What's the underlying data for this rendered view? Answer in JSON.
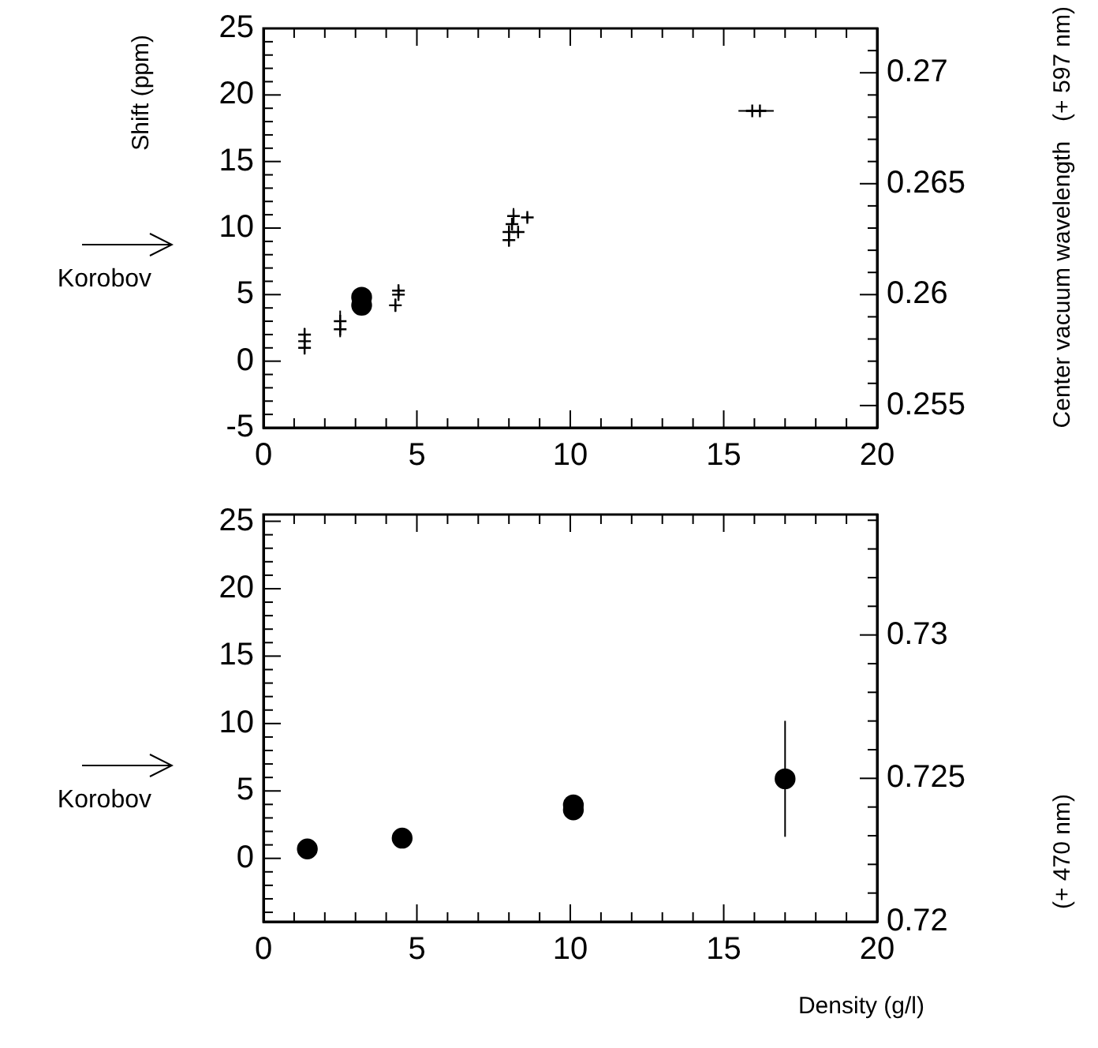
{
  "chart_data": [
    {
      "type": "scatter",
      "ylabel": "Shift (ppm)",
      "y2label": "Center vacuum wavelength   (+ 597 nm)",
      "xlim": [
        0,
        20
      ],
      "xticks": [
        0,
        {
          "value": 1,
          "label": null
        },
        {
          "value": 2,
          "label": null
        },
        {
          "value": 3,
          "label": null
        },
        {
          "value": 4,
          "label": null
        },
        5,
        {
          "value": 6,
          "label": null
        },
        {
          "value": 7,
          "label": null
        },
        {
          "value": 8,
          "label": null
        },
        {
          "value": 9,
          "label": null
        },
        10,
        {
          "value": 11,
          "label": null
        },
        {
          "value": 12,
          "label": null
        },
        {
          "value": 13,
          "label": null
        },
        {
          "value": 14,
          "label": null
        },
        15,
        {
          "value": 16,
          "label": null
        },
        {
          "value": 17,
          "label": null
        },
        {
          "value": 18,
          "label": null
        },
        {
          "value": 19,
          "label": null
        },
        20
      ],
      "ylim": [
        -5,
        25
      ],
      "yticks": [
        -5,
        {
          "value": -4,
          "label": null
        },
        {
          "value": -3,
          "label": null
        },
        {
          "value": -2,
          "label": null
        },
        {
          "value": -1,
          "label": null
        },
        0,
        {
          "value": 1,
          "label": null
        },
        {
          "value": 2,
          "label": null
        },
        {
          "value": 3,
          "label": null
        },
        {
          "value": 4,
          "label": null
        },
        5,
        {
          "value": 6,
          "label": null
        },
        {
          "value": 7,
          "label": null
        },
        {
          "value": 8,
          "label": null
        },
        {
          "value": 9,
          "label": null
        },
        10,
        {
          "value": 11,
          "label": null
        },
        {
          "value": 12,
          "label": null
        },
        {
          "value": 13,
          "label": null
        },
        {
          "value": 14,
          "label": null
        },
        15,
        {
          "value": 16,
          "label": null
        },
        {
          "value": 17,
          "label": null
        },
        {
          "value": 18,
          "label": null
        },
        {
          "value": 19,
          "label": null
        },
        20,
        {
          "value": 21,
          "label": null
        },
        {
          "value": 22,
          "label": null
        },
        {
          "value": 23,
          "label": null
        },
        {
          "value": 24,
          "label": null
        },
        25
      ],
      "y2lim": [
        0.254,
        0.272
      ],
      "y2ticks": [
        0.255,
        {
          "value": 0.256,
          "label": null
        },
        {
          "value": 0.257,
          "label": null
        },
        {
          "value": 0.258,
          "label": null
        },
        {
          "value": 0.259,
          "label": null
        },
        0.26,
        {
          "value": 0.261,
          "label": null
        },
        {
          "value": 0.262,
          "label": null
        },
        {
          "value": 0.263,
          "label": null
        },
        {
          "value": 0.264,
          "label": null
        },
        0.265,
        {
          "value": 0.266,
          "label": null
        },
        {
          "value": 0.267,
          "label": null
        },
        {
          "value": 0.268,
          "label": null
        },
        {
          "value": 0.269,
          "label": null
        },
        0.27,
        {
          "value": 0.271,
          "label": null
        }
      ],
      "series": [
        {
          "color": "#000000",
          "marker": "cross",
          "x": [
            1.34,
            1.34,
            1.34,
            2.5,
            2.5,
            4.3,
            4.4,
            4.4,
            8.0,
            8.0,
            8.3,
            8.1,
            8.15,
            8.6,
            15.93,
            16.18
          ],
          "values": [
            2.0,
            1.5,
            1.0,
            3.0,
            2.4,
            4.2,
            5.3,
            5.0,
            9.7,
            9.1,
            9.7,
            10.3,
            10.9,
            10.8,
            18.8,
            18.8
          ],
          "errors": [
            0.5,
            0.5,
            0.5,
            0.8,
            0.6,
            0.5,
            0.4,
            0.4,
            0.5,
            0.5,
            0.3,
            0.4,
            0.6,
            0.3,
            null,
            null
          ],
          "xerrors": [
            null,
            null,
            null,
            null,
            null,
            null,
            null,
            null,
            null,
            null,
            null,
            null,
            null,
            null,
            0.45,
            0.45
          ]
        },
        {
          "color": "#000000",
          "marker": "circle",
          "x": [
            3.2,
            3.2
          ],
          "values": [
            4.8,
            4.2
          ]
        }
      ],
      "annotations": [
        "Korobov"
      ]
    },
    {
      "type": "scatter",
      "xlabel": "Density (g/l)",
      "y2label": "(+ 470 nm)",
      "xlim": [
        0,
        20
      ],
      "xticks": [
        0,
        {
          "value": 1,
          "label": null
        },
        {
          "value": 2,
          "label": null
        },
        {
          "value": 3,
          "label": null
        },
        {
          "value": 4,
          "label": null
        },
        5,
        {
          "value": 6,
          "label": null
        },
        {
          "value": 7,
          "label": null
        },
        {
          "value": 8,
          "label": null
        },
        {
          "value": 9,
          "label": null
        },
        10,
        {
          "value": 11,
          "label": null
        },
        {
          "value": 12,
          "label": null
        },
        {
          "value": 13,
          "label": null
        },
        {
          "value": 14,
          "label": null
        },
        15,
        {
          "value": 16,
          "label": null
        },
        {
          "value": 17,
          "label": null
        },
        {
          "value": 18,
          "label": null
        },
        {
          "value": 19,
          "label": null
        },
        20
      ],
      "ylim": [
        -4.7,
        25.5
      ],
      "yticks": [
        {
          "value": -4,
          "label": null
        },
        {
          "value": -3,
          "label": null
        },
        {
          "value": -2,
          "label": null
        },
        {
          "value": -1,
          "label": null
        },
        0,
        {
          "value": 1,
          "label": null
        },
        {
          "value": 2,
          "label": null
        },
        {
          "value": 3,
          "label": null
        },
        {
          "value": 4,
          "label": null
        },
        5,
        {
          "value": 6,
          "label": null
        },
        {
          "value": 7,
          "label": null
        },
        {
          "value": 8,
          "label": null
        },
        {
          "value": 9,
          "label": null
        },
        10,
        {
          "value": 11,
          "label": null
        },
        {
          "value": 12,
          "label": null
        },
        {
          "value": 13,
          "label": null
        },
        {
          "value": 14,
          "label": null
        },
        15,
        {
          "value": 16,
          "label": null
        },
        {
          "value": 17,
          "label": null
        },
        {
          "value": 18,
          "label": null
        },
        {
          "value": 19,
          "label": null
        },
        20,
        {
          "value": 21,
          "label": null
        },
        {
          "value": 22,
          "label": null
        },
        {
          "value": 23,
          "label": null
        },
        {
          "value": 24,
          "label": null
        },
        25
      ],
      "y2lim": [
        0.72,
        0.7342
      ],
      "y2ticks": [
        0.72,
        {
          "value": 0.721,
          "label": null
        },
        {
          "value": 0.722,
          "label": null
        },
        {
          "value": 0.723,
          "label": null
        },
        {
          "value": 0.724,
          "label": null
        },
        0.725,
        {
          "value": 0.726,
          "label": null
        },
        {
          "value": 0.727,
          "label": null
        },
        {
          "value": 0.728,
          "label": null
        },
        {
          "value": 0.729,
          "label": null
        },
        0.73,
        {
          "value": 0.731,
          "label": null
        },
        {
          "value": 0.732,
          "label": null
        },
        {
          "value": 0.733,
          "label": null
        },
        {
          "value": 0.734,
          "label": null
        }
      ],
      "series": [
        {
          "color": "#000000",
          "marker": "circle",
          "x": [
            1.43,
            4.52,
            10.1,
            10.1,
            17.0
          ],
          "values": [
            0.7,
            1.5,
            3.97,
            3.6,
            5.9
          ],
          "errors": [
            null,
            null,
            0.3,
            null,
            4.3
          ]
        }
      ],
      "annotations": [
        "Korobov"
      ]
    }
  ]
}
